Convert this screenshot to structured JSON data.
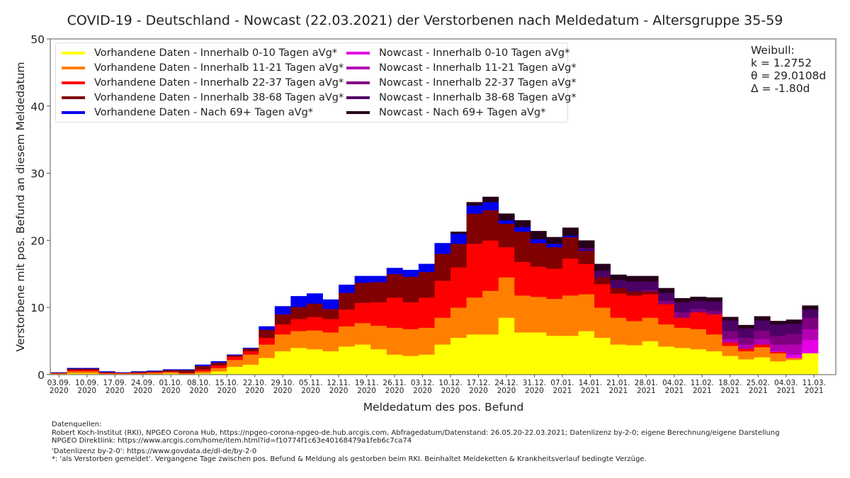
{
  "chart_data": {
    "type": "bar",
    "stacked": true,
    "title": "COVID-19 - Deutschland - Nowcast (22.03.2021) der Verstorbenen nach Meldedatum - Altersgruppe 35-59",
    "xlabel": "Meldedatum des pos. Befund",
    "ylabel": "Verstorbene mit pos. Befund an diesem Meldedatum",
    "ylim": [
      0,
      50
    ],
    "yticks": [
      "0",
      "10",
      "20",
      "30",
      "40",
      "50"
    ],
    "x_start": "01.09.2020",
    "x_end": "11.03.2021",
    "bin_days": 4,
    "xticks": [
      {
        "day": 2,
        "label": [
          "03.09.",
          "2020"
        ]
      },
      {
        "day": 9,
        "label": [
          "10.09.",
          "2020"
        ]
      },
      {
        "day": 16,
        "label": [
          "17.09.",
          "2020"
        ]
      },
      {
        "day": 23,
        "label": [
          "24.09.",
          "2020"
        ]
      },
      {
        "day": 30,
        "label": [
          "01.10.",
          "2020"
        ]
      },
      {
        "day": 37,
        "label": [
          "08.10.",
          "2020"
        ]
      },
      {
        "day": 44,
        "label": [
          "15.10.",
          "2020"
        ]
      },
      {
        "day": 51,
        "label": [
          "22.10.",
          "2020"
        ]
      },
      {
        "day": 58,
        "label": [
          "29.10.",
          "2020"
        ]
      },
      {
        "day": 65,
        "label": [
          "05.11.",
          "2020"
        ]
      },
      {
        "day": 72,
        "label": [
          "12.11.",
          "2020"
        ]
      },
      {
        "day": 79,
        "label": [
          "19.11.",
          "2020"
        ]
      },
      {
        "day": 86,
        "label": [
          "26.11.",
          "2020"
        ]
      },
      {
        "day": 93,
        "label": [
          "03.12.",
          "2020"
        ]
      },
      {
        "day": 100,
        "label": [
          "10.12.",
          "2020"
        ]
      },
      {
        "day": 107,
        "label": [
          "17.12.",
          "2020"
        ]
      },
      {
        "day": 114,
        "label": [
          "24.12.",
          "2020"
        ]
      },
      {
        "day": 121,
        "label": [
          "31.12.",
          "2020"
        ]
      },
      {
        "day": 128,
        "label": [
          "07.01.",
          "2021"
        ]
      },
      {
        "day": 135,
        "label": [
          "14.01.",
          "2021"
        ]
      },
      {
        "day": 142,
        "label": [
          "21.01.",
          "2021"
        ]
      },
      {
        "day": 149,
        "label": [
          "28.01.",
          "2021"
        ]
      },
      {
        "day": 156,
        "label": [
          "04.02.",
          "2021"
        ]
      },
      {
        "day": 163,
        "label": [
          "11.02.",
          "2021"
        ]
      },
      {
        "day": 170,
        "label": [
          "18.02.",
          "2021"
        ]
      },
      {
        "day": 177,
        "label": [
          "25.02.",
          "2021"
        ]
      },
      {
        "day": 184,
        "label": [
          "04.03.",
          "2021"
        ]
      },
      {
        "day": 191,
        "label": [
          "11.03.",
          "2021"
        ]
      }
    ],
    "legend_position": "top-left",
    "series": [
      {
        "name": "Vorhandene Daten - Innerhalb 0-10 Tagen aVg*",
        "color": "#ffff00",
        "values": [
          0.1,
          0.2,
          0.2,
          0.1,
          0.1,
          0.1,
          0.1,
          0.2,
          0.1,
          0.2,
          0.5,
          1.2,
          1.5,
          2.5,
          3.5,
          4.0,
          3.8,
          3.5,
          4.2,
          4.5,
          3.8,
          3.0,
          2.8,
          3.0,
          4.5,
          5.5,
          6.0,
          6.0,
          8.5,
          6.3,
          6.3,
          5.8,
          5.8,
          6.5,
          5.5,
          4.5,
          4.4,
          5.0,
          4.2,
          4.0,
          3.8,
          3.5,
          2.8,
          2.3,
          2.6,
          2.0,
          2.2,
          3.2
        ]
      },
      {
        "name": "Vorhandene Daten - Innerhalb 11-21 Tagen aVg*",
        "color": "#ff8000",
        "values": [
          0.1,
          0.3,
          0.3,
          0.1,
          0.1,
          0.1,
          0.2,
          0.2,
          0.1,
          0.3,
          0.5,
          1.0,
          1.5,
          2.0,
          2.5,
          2.5,
          2.8,
          2.8,
          3.0,
          3.2,
          3.5,
          4.0,
          4.0,
          4.0,
          4.0,
          4.5,
          5.5,
          6.5,
          6.0,
          5.5,
          5.3,
          5.5,
          6.0,
          5.5,
          4.5,
          4.0,
          3.6,
          3.5,
          3.3,
          3.0,
          3.0,
          2.5,
          1.5,
          1.2,
          1.5,
          1.2,
          0.3,
          0.0
        ]
      },
      {
        "name": "Vorhandene Daten - Innerhalb 22-37 Tagen aVg*",
        "color": "#ff0000",
        "values": [
          0.05,
          0.2,
          0.2,
          0.1,
          0.05,
          0.1,
          0.1,
          0.1,
          0.1,
          0.3,
          0.4,
          0.5,
          0.5,
          1.0,
          1.5,
          1.8,
          2.0,
          2.0,
          2.5,
          3.0,
          3.5,
          4.5,
          4.0,
          4.5,
          5.5,
          6.0,
          8.0,
          7.5,
          4.5,
          5.0,
          4.5,
          4.5,
          5.5,
          4.5,
          3.5,
          3.6,
          3.8,
          3.5,
          3.0,
          1.5,
          2.5,
          3.0,
          0.5,
          0.4,
          0.4,
          0.2,
          0.0,
          0.0
        ]
      },
      {
        "name": "Vorhandene Daten - Innerhalb 38-68 Tagen aVg*",
        "color": "#800000",
        "values": [
          0.05,
          0.2,
          0.2,
          0.1,
          0.05,
          0.1,
          0.1,
          0.2,
          0.4,
          0.5,
          0.4,
          0.2,
          0.4,
          1.2,
          1.5,
          1.8,
          2.0,
          1.5,
          2.5,
          3.0,
          3.0,
          3.5,
          3.8,
          3.8,
          4.0,
          3.5,
          4.5,
          4.5,
          3.5,
          4.5,
          3.5,
          3.2,
          3.2,
          2.0,
          1.0,
          0.8,
          0.6,
          0.4,
          0.0,
          0.0,
          0.0,
          0.0,
          0.0,
          0.0,
          0.0,
          0.0,
          0.0,
          0.0
        ]
      },
      {
        "name": "Vorhandene Daten - Nach 69+ Tagen aVg*",
        "color": "#0000ee",
        "values": [
          0.05,
          0.1,
          0.1,
          0.1,
          0.05,
          0.1,
          0.1,
          0.1,
          0.1,
          0.2,
          0.2,
          0.1,
          0.1,
          0.5,
          1.2,
          1.6,
          1.5,
          1.4,
          1.2,
          1.0,
          0.9,
          0.9,
          1.0,
          1.2,
          1.6,
          1.5,
          1.2,
          1.2,
          0.5,
          0.7,
          0.6,
          0.5,
          0.2,
          0.1,
          0.0,
          0.0,
          0.0,
          0.0,
          0.0,
          0.0,
          0.0,
          0.0,
          0.0,
          0.0,
          0.0,
          0.0,
          0.0,
          0.0
        ]
      },
      {
        "name": "Nowcast - Innerhalb 0-10 Tagen aVg*",
        "color": "#e600e6",
        "values": [
          0,
          0,
          0,
          0,
          0,
          0,
          0,
          0,
          0,
          0,
          0,
          0,
          0,
          0,
          0,
          0,
          0,
          0,
          0,
          0,
          0,
          0,
          0,
          0,
          0,
          0,
          0,
          0,
          0,
          0,
          0,
          0,
          0,
          0,
          0,
          0,
          0,
          0,
          0,
          0,
          0,
          0,
          0,
          0,
          0,
          0.1,
          0.5,
          2.0
        ]
      },
      {
        "name": "Nowcast - Innerhalb 11-21 Tagen aVg*",
        "color": "#b300b3",
        "values": [
          0,
          0,
          0,
          0,
          0,
          0,
          0,
          0,
          0,
          0,
          0,
          0,
          0,
          0,
          0,
          0,
          0,
          0,
          0,
          0,
          0,
          0,
          0,
          0,
          0,
          0,
          0,
          0,
          0,
          0,
          0,
          0,
          0,
          0,
          0,
          0,
          0,
          0,
          0,
          0,
          0,
          0,
          0.5,
          0.6,
          0.8,
          1.0,
          1.5,
          1.6
        ]
      },
      {
        "name": "Nowcast - Innerhalb 22-37 Tagen aVg*",
        "color": "#800080",
        "values": [
          0,
          0,
          0,
          0,
          0,
          0,
          0,
          0,
          0,
          0,
          0,
          0,
          0,
          0,
          0,
          0,
          0,
          0,
          0,
          0,
          0,
          0,
          0,
          0,
          0,
          0,
          0,
          0,
          0,
          0,
          0,
          0,
          0,
          0,
          0,
          0,
          0,
          0.2,
          0.5,
          0.8,
          0.5,
          0.5,
          1.2,
          1.0,
          1.3,
          1.3,
          1.6,
          1.7
        ]
      },
      {
        "name": "Nowcast - Innerhalb 38-68 Tagen aVg*",
        "color": "#4d0066",
        "values": [
          0,
          0,
          0,
          0,
          0,
          0,
          0,
          0,
          0,
          0,
          0,
          0,
          0,
          0,
          0,
          0,
          0,
          0,
          0,
          0,
          0,
          0,
          0,
          0,
          0,
          0,
          0,
          0,
          0,
          0,
          0,
          0,
          0,
          0.3,
          1.0,
          1.2,
          1.5,
          1.3,
          1.2,
          1.5,
          1.2,
          1.4,
          1.6,
          1.4,
          1.5,
          1.7,
          1.5,
          1.2
        ]
      },
      {
        "name": "Nowcast - Nach 69+ Tagen aVg*",
        "color": "#26001a",
        "values": [
          0,
          0,
          0,
          0,
          0,
          0,
          0,
          0,
          0,
          0,
          0,
          0,
          0,
          0,
          0,
          0,
          0,
          0,
          0,
          0,
          0,
          0,
          0,
          0,
          0,
          0.3,
          0.5,
          0.8,
          1.0,
          1.0,
          1.2,
          1.0,
          1.2,
          1.1,
          1.0,
          0.8,
          0.8,
          0.8,
          0.7,
          0.6,
          0.6,
          0.6,
          0.5,
          0.5,
          0.6,
          0.5,
          0.6,
          0.6
        ]
      }
    ]
  },
  "legend": {
    "items": [
      "Vorhandene Daten - Innerhalb 0-10 Tagen aVg*",
      "Vorhandene Daten - Innerhalb 11-21 Tagen aVg*",
      "Vorhandene Daten - Innerhalb 22-37 Tagen aVg*",
      "Vorhandene Daten - Innerhalb 38-68 Tagen aVg*",
      "Vorhandene Daten - Nach 69+ Tagen aVg*",
      "Nowcast - Innerhalb 0-10 Tagen aVg*",
      "Nowcast - Innerhalb 11-21 Tagen aVg*",
      "Nowcast - Innerhalb 22-37 Tagen aVg*",
      "Nowcast - Innerhalb 38-68 Tagen aVg*",
      "Nowcast - Nach 69+ Tagen aVg*"
    ]
  },
  "weibull": {
    "heading": "Weibull:",
    "k": "k = 1.2752",
    "theta": "θ = 29.0108d",
    "delta": "Δ = -1.80d"
  },
  "footnotes": {
    "line1": "Datenquellen:",
    "line2": "Robert Koch-Institut (RKI), NPGEO Corona Hub, https://npgeo-corona-npgeo-de.hub.arcgis.com, Abfragedatum/Datenstand: 26.05.20-22.03.2021; Datenlizenz by-2-0; eigene Berechnung/eigene Darstellung",
    "line3": "NPGEO Direktlink: https://www.arcgis.com/home/item.html?id=f10774f1c63e40168479a1feb6c7ca74",
    "line4": "'Datenlizenz by-2-0': https://www.govdata.de/dl-de/by-2-0",
    "line5": "*: 'als Verstorben gemeldet'. Vergangene Tage zwischen pos. Befund & Meldung als gestorben beim RKI. Beinhaltet Meldeketten & Krankheitsverlauf bedingte Verzüge."
  }
}
